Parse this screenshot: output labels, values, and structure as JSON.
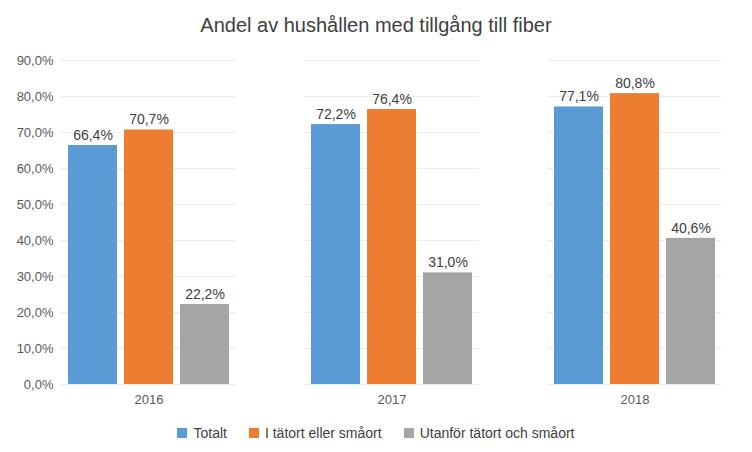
{
  "chart_data": {
    "type": "bar",
    "title": "Andel av hushållen med tillgång till fiber",
    "categories": [
      "2016",
      "2017",
      "2018"
    ],
    "series": [
      {
        "name": "Totalt",
        "color": "#5B9BD5",
        "values": [
          66.4,
          72.2,
          77.1
        ],
        "value_labels": [
          "66,4%",
          "72,2%",
          "77,1%"
        ]
      },
      {
        "name": "I tätort eller småort",
        "color": "#ED7D31",
        "values": [
          70.7,
          76.4,
          80.8
        ],
        "value_labels": [
          "70,7%",
          "76,4%",
          "80,8%"
        ]
      },
      {
        "name": "Utanför tätort och småort",
        "color": "#A5A5A5",
        "values": [
          22.2,
          31.0,
          40.6
        ],
        "value_labels": [
          "22,2%",
          "31,0%",
          "40,6%"
        ]
      }
    ],
    "ylim": [
      0,
      90
    ],
    "yticks": [
      {
        "value": 0,
        "label": "0,0%"
      },
      {
        "value": 10,
        "label": "10,0%"
      },
      {
        "value": 20,
        "label": "20,0%"
      },
      {
        "value": 30,
        "label": "30,0%"
      },
      {
        "value": 40,
        "label": "40,0%"
      },
      {
        "value": 50,
        "label": "50,0%"
      },
      {
        "value": 60,
        "label": "60,0%"
      },
      {
        "value": 70,
        "label": "70,0%"
      },
      {
        "value": 80,
        "label": "80,0%"
      },
      {
        "value": 90,
        "label": "90,0%"
      }
    ],
    "grid": true,
    "data_labels": true,
    "legend": "bottom"
  }
}
